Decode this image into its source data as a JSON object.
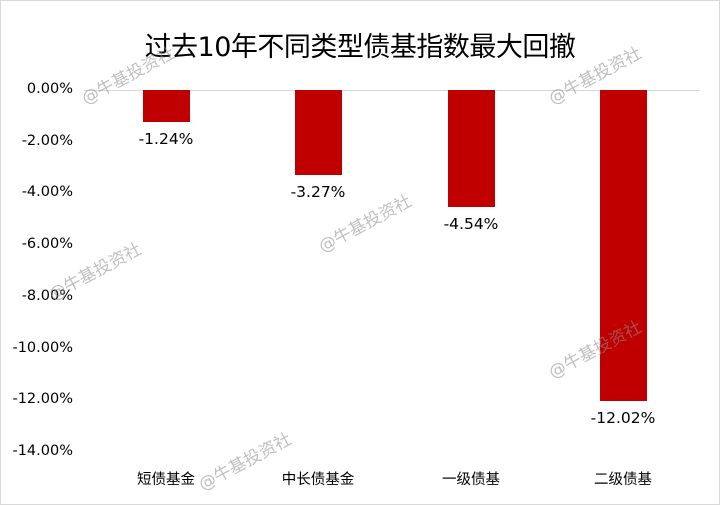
{
  "chart_data": {
    "type": "bar",
    "title": "过去10年不同类型债基指数最大回撤",
    "categories": [
      "短债基金",
      "中长债基金",
      "一级债基",
      "二级债基"
    ],
    "values": [
      -1.24,
      -3.27,
      -4.54,
      -12.02
    ],
    "value_labels": [
      "-1.24%",
      "-3.27%",
      "-4.54%",
      "-12.02%"
    ],
    "xlabel": "",
    "ylabel": "",
    "ylim": [
      -14,
      0
    ],
    "yticks": [
      "0.00%",
      "-2.00%",
      "-4.00%",
      "-6.00%",
      "-8.00%",
      "-10.00%",
      "-12.00%",
      "-14.00%"
    ],
    "grid": false,
    "legend": null,
    "bar_color": "#C00000"
  },
  "watermark": "@牛基投资社"
}
